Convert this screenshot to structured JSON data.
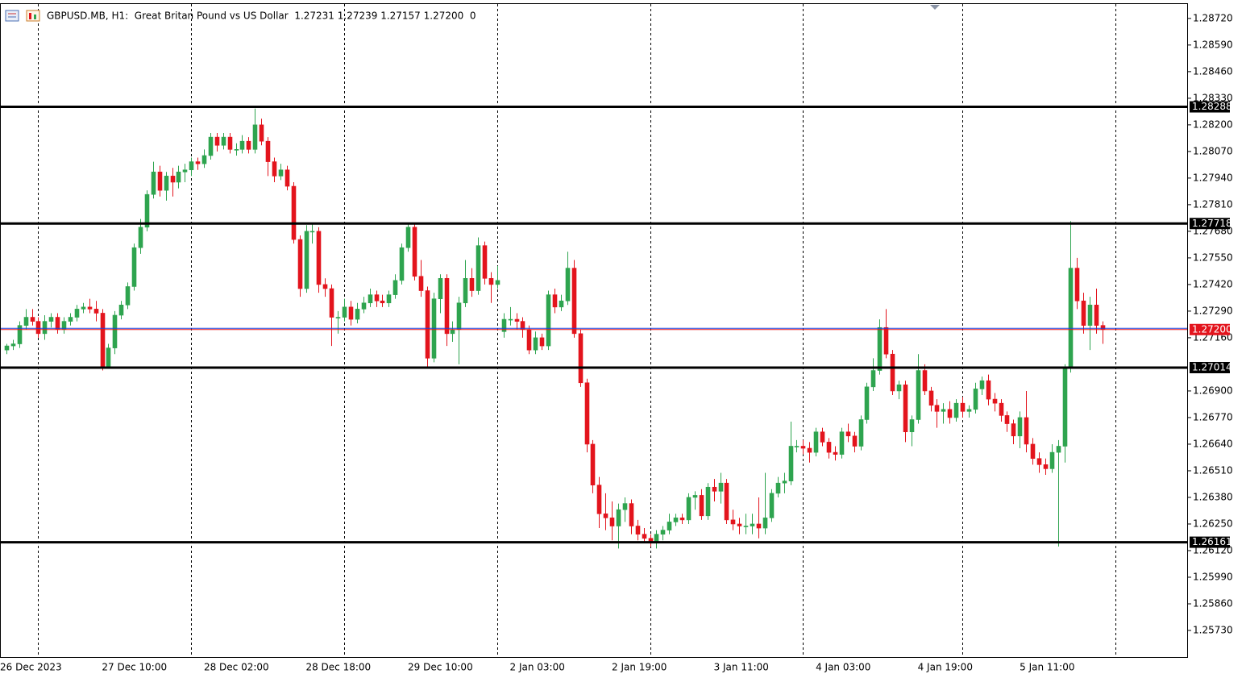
{
  "chart_data": {
    "type": "candlestick",
    "title": "GBPUSD.MB, H1:  Great Britan Pound vs US Dollar  1.27231 1.27239 1.27157 1.27200  0",
    "up_color": "#2ea44f",
    "down_color": "#e3141d",
    "ylim": [
      1.256,
      1.2881
    ],
    "xlim": [
      -1,
      185.4
    ],
    "yticks": [
      {
        "value": 1.2872,
        "label": "1.28720"
      },
      {
        "value": 1.2859,
        "label": "1.28590"
      },
      {
        "value": 1.2846,
        "label": "1.28460"
      },
      {
        "value": 1.2833,
        "label": "1.28330"
      },
      {
        "value": 1.282,
        "label": "1.28200"
      },
      {
        "value": 1.2807,
        "label": "1.28070"
      },
      {
        "value": 1.2794,
        "label": "1.27940"
      },
      {
        "value": 1.2781,
        "label": "1.27810"
      },
      {
        "value": 1.2768,
        "label": "1.27680"
      },
      {
        "value": 1.2755,
        "label": "1.27550"
      },
      {
        "value": 1.2742,
        "label": "1.27420"
      },
      {
        "value": 1.2729,
        "label": "1.27290"
      },
      {
        "value": 1.2716,
        "label": "1.27160"
      },
      {
        "value": 1.269,
        "label": "1.26900"
      },
      {
        "value": 1.2677,
        "label": "1.26770"
      },
      {
        "value": 1.2664,
        "label": "1.26640"
      },
      {
        "value": 1.2651,
        "label": "1.26510"
      },
      {
        "value": 1.2638,
        "label": "1.26380"
      },
      {
        "value": 1.2625,
        "label": "1.26250"
      },
      {
        "value": 1.2612,
        "label": "1.26120"
      },
      {
        "value": 1.2599,
        "label": "1.25990"
      },
      {
        "value": 1.2586,
        "label": "1.25860"
      },
      {
        "value": 1.2573,
        "label": "1.25730"
      }
    ],
    "xticks": [
      {
        "value": 0,
        "label": "26 Dec 2023"
      },
      {
        "value": 16,
        "label": "27 Dec 10:00"
      },
      {
        "value": 32,
        "label": "28 Dec 02:00"
      },
      {
        "value": 48,
        "label": "28 Dec 18:00"
      },
      {
        "value": 64,
        "label": "29 Dec 10:00"
      },
      {
        "value": 80,
        "label": "2 Jan 03:00"
      },
      {
        "value": 96,
        "label": "2 Jan 19:00"
      },
      {
        "value": 112,
        "label": "3 Jan 11:00"
      },
      {
        "value": 128,
        "label": "4 Jan 03:00"
      },
      {
        "value": 144,
        "label": "4 Jan 19:00"
      },
      {
        "value": 160,
        "label": "5 Jan 11:00"
      }
    ],
    "xgrid": [
      5,
      29,
      53,
      77,
      101,
      125,
      150,
      174
    ],
    "levels": [
      {
        "value": 1.28288,
        "label": "1.28288"
      },
      {
        "value": 1.27718,
        "label": "1.27718"
      },
      {
        "value": 1.27014,
        "label": "1.27014"
      },
      {
        "value": 1.26161,
        "label": "1.26161"
      }
    ],
    "bid": {
      "value": 1.272,
      "label": "1.27200",
      "color": "#e3141d"
    },
    "ask": {
      "value": 1.27206,
      "color": "#1f3fd6"
    },
    "ohlc": [
      [
        1.271,
        1.2713,
        1.2708,
        1.2712
      ],
      [
        1.2712,
        1.2715,
        1.271,
        1.2713
      ],
      [
        1.2713,
        1.2724,
        1.2711,
        1.2722
      ],
      [
        1.2722,
        1.273,
        1.272,
        1.2726
      ],
      [
        1.2726,
        1.273,
        1.2722,
        1.2724
      ],
      [
        1.2724,
        1.2726,
        1.2716,
        1.2718
      ],
      [
        1.2718,
        1.2727,
        1.2715,
        1.2724
      ],
      [
        1.2724,
        1.2728,
        1.2721,
        1.2726
      ],
      [
        1.2726,
        1.2728,
        1.2718,
        1.272
      ],
      [
        1.272,
        1.2726,
        1.2718,
        1.2724
      ],
      [
        1.2724,
        1.2728,
        1.2722,
        1.2726
      ],
      [
        1.2726,
        1.2732,
        1.2724,
        1.273
      ],
      [
        1.273,
        1.2733,
        1.2728,
        1.2731
      ],
      [
        1.2731,
        1.2735,
        1.2728,
        1.273
      ],
      [
        1.273,
        1.2734,
        1.2724,
        1.2728
      ],
      [
        1.2728,
        1.273,
        1.27,
        1.2702
      ],
      [
        1.2702,
        1.2713,
        1.2701,
        1.2711
      ],
      [
        1.2711,
        1.2729,
        1.2708,
        1.2727
      ],
      [
        1.2727,
        1.2734,
        1.2725,
        1.2732
      ],
      [
        1.2732,
        1.2743,
        1.273,
        1.2741
      ],
      [
        1.2741,
        1.2762,
        1.2739,
        1.276
      ],
      [
        1.276,
        1.2774,
        1.2757,
        1.277
      ],
      [
        1.277,
        1.2788,
        1.2768,
        1.2786
      ],
      [
        1.2786,
        1.2802,
        1.2784,
        1.2797
      ],
      [
        1.2797,
        1.28,
        1.2785,
        1.2788
      ],
      [
        1.2788,
        1.2797,
        1.2783,
        1.2795
      ],
      [
        1.2795,
        1.2799,
        1.2785,
        1.2792
      ],
      [
        1.2792,
        1.28,
        1.2789,
        1.2797
      ],
      [
        1.2797,
        1.2801,
        1.2792,
        1.2798
      ],
      [
        1.2798,
        1.2804,
        1.2795,
        1.2802
      ],
      [
        1.2802,
        1.2804,
        1.2798,
        1.2801
      ],
      [
        1.2801,
        1.2808,
        1.2799,
        1.2805
      ],
      [
        1.2805,
        1.2816,
        1.2803,
        1.2814
      ],
      [
        1.2814,
        1.2816,
        1.2807,
        1.281
      ],
      [
        1.281,
        1.2816,
        1.2808,
        1.2814
      ],
      [
        1.2814,
        1.2816,
        1.2806,
        1.2808
      ],
      [
        1.2808,
        1.2811,
        1.2805,
        1.2808
      ],
      [
        1.2808,
        1.2815,
        1.2806,
        1.2812
      ],
      [
        1.2812,
        1.2814,
        1.2806,
        1.2808
      ],
      [
        1.2808,
        1.2828,
        1.2806,
        1.282
      ],
      [
        1.282,
        1.2823,
        1.281,
        1.2812
      ],
      [
        1.2812,
        1.2814,
        1.2795,
        1.2802
      ],
      [
        1.2802,
        1.2804,
        1.2792,
        1.2795
      ],
      [
        1.2795,
        1.2801,
        1.2793,
        1.2798
      ],
      [
        1.2798,
        1.28,
        1.2788,
        1.279
      ],
      [
        1.279,
        1.2792,
        1.2762,
        1.2764
      ],
      [
        1.2764,
        1.2766,
        1.2736,
        1.274
      ],
      [
        1.274,
        1.2771,
        1.2738,
        1.2768
      ],
      [
        1.2768,
        1.2772,
        1.2762,
        1.2768
      ],
      [
        1.2768,
        1.277,
        1.2738,
        1.2742
      ],
      [
        1.2742,
        1.2745,
        1.2736,
        1.274
      ],
      [
        1.274,
        1.2742,
        1.2712,
        1.2726
      ],
      [
        1.2726,
        1.2729,
        1.2718,
        1.2726
      ],
      [
        1.2726,
        1.2735,
        1.2724,
        1.2731
      ],
      [
        1.2731,
        1.2734,
        1.2722,
        1.2725
      ],
      [
        1.2725,
        1.2733,
        1.2723,
        1.273
      ],
      [
        1.273,
        1.2736,
        1.2728,
        1.2733
      ],
      [
        1.2733,
        1.274,
        1.2731,
        1.2737
      ],
      [
        1.2737,
        1.2739,
        1.2731,
        1.2734
      ],
      [
        1.2734,
        1.2737,
        1.2731,
        1.2733
      ],
      [
        1.2733,
        1.2739,
        1.2731,
        1.2737
      ],
      [
        1.2737,
        1.2747,
        1.2735,
        1.2744
      ],
      [
        1.2744,
        1.2762,
        1.2742,
        1.276
      ],
      [
        1.276,
        1.2772,
        1.2758,
        1.277
      ],
      [
        1.277,
        1.2772,
        1.2744,
        1.2746
      ],
      [
        1.2746,
        1.2754,
        1.2736,
        1.2739
      ],
      [
        1.2739,
        1.2741,
        1.2702,
        1.2706
      ],
      [
        1.2706,
        1.2738,
        1.2704,
        1.2735
      ],
      [
        1.2735,
        1.2747,
        1.2728,
        1.2745
      ],
      [
        1.2745,
        1.2747,
        1.2712,
        1.2718
      ],
      [
        1.2718,
        1.2724,
        1.2714,
        1.272
      ],
      [
        1.272,
        1.2736,
        1.2703,
        1.2733
      ],
      [
        1.2733,
        1.2754,
        1.2731,
        1.2745
      ],
      [
        1.2745,
        1.275,
        1.2736,
        1.2739
      ],
      [
        1.2739,
        1.2765,
        1.2737,
        1.2761
      ],
      [
        1.2761,
        1.2763,
        1.2742,
        1.2745
      ],
      [
        1.2745,
        1.2748,
        1.2733,
        1.2742
      ],
      [
        1.2742,
        1.2751,
        1.274,
        1.2744
      ],
      [
        1.2719,
        1.2728,
        1.2716,
        1.2725
      ],
      [
        1.2725,
        1.2731,
        1.2722,
        1.2725
      ],
      [
        1.2725,
        1.2728,
        1.272,
        1.2724
      ],
      [
        1.2724,
        1.2726,
        1.2716,
        1.272
      ],
      [
        1.272,
        1.2722,
        1.2708,
        1.271
      ],
      [
        1.271,
        1.2719,
        1.2708,
        1.2716
      ],
      [
        1.2716,
        1.2718,
        1.271,
        1.2712
      ],
      [
        1.2712,
        1.2739,
        1.271,
        1.2737
      ],
      [
        1.2737,
        1.274,
        1.2728,
        1.2731
      ],
      [
        1.2731,
        1.2737,
        1.2729,
        1.2734
      ],
      [
        1.2734,
        1.2758,
        1.2732,
        1.275
      ],
      [
        1.275,
        1.2754,
        1.2716,
        1.2718
      ],
      [
        1.2718,
        1.272,
        1.2692,
        1.2694
      ],
      [
        1.2694,
        1.2696,
        1.266,
        1.2664
      ],
      [
        1.2664,
        1.2666,
        1.264,
        1.2644
      ],
      [
        1.2644,
        1.2648,
        1.2623,
        1.263
      ],
      [
        1.263,
        1.264,
        1.2622,
        1.2628
      ],
      [
        1.2628,
        1.2636,
        1.2617,
        1.2624
      ],
      [
        1.2624,
        1.2635,
        1.2613,
        1.2632
      ],
      [
        1.2632,
        1.2638,
        1.2626,
        1.2635
      ],
      [
        1.2635,
        1.2637,
        1.262,
        1.2624
      ],
      [
        1.2624,
        1.2627,
        1.2617,
        1.262
      ],
      [
        1.262,
        1.2623,
        1.2616,
        1.2618
      ],
      [
        1.2618,
        1.262,
        1.2614,
        1.2616
      ],
      [
        1.2616,
        1.2622,
        1.2613,
        1.262
      ],
      [
        1.262,
        1.2624,
        1.2617,
        1.2622
      ],
      [
        1.2622,
        1.263,
        1.262,
        1.2626
      ],
      [
        1.2626,
        1.263,
        1.2624,
        1.2628
      ],
      [
        1.2628,
        1.263,
        1.2625,
        1.2627
      ],
      [
        1.2627,
        1.264,
        1.2625,
        1.2638
      ],
      [
        1.2638,
        1.2641,
        1.2632,
        1.2639
      ],
      [
        1.2639,
        1.2642,
        1.2627,
        1.2629
      ],
      [
        1.2629,
        1.2645,
        1.2627,
        1.2643
      ],
      [
        1.2643,
        1.2647,
        1.2636,
        1.2641
      ],
      [
        1.2641,
        1.265,
        1.2635,
        1.2645
      ],
      [
        1.2645,
        1.2647,
        1.2625,
        1.2627
      ],
      [
        1.2627,
        1.2632,
        1.2622,
        1.2625
      ],
      [
        1.2625,
        1.2628,
        1.262,
        1.2624
      ],
      [
        1.2624,
        1.263,
        1.262,
        1.2624
      ],
      [
        1.2624,
        1.263,
        1.262,
        1.2625
      ],
      [
        1.2625,
        1.2638,
        1.2618,
        1.2623
      ],
      [
        1.2623,
        1.265,
        1.262,
        1.2628
      ],
      [
        1.2628,
        1.2642,
        1.2626,
        1.264
      ],
      [
        1.264,
        1.2648,
        1.2638,
        1.2645
      ],
      [
        1.2645,
        1.265,
        1.264,
        1.2646
      ],
      [
        1.2646,
        1.2675,
        1.2644,
        1.2663
      ],
      [
        1.2663,
        1.2666,
        1.266,
        1.2663
      ],
      [
        1.2663,
        1.2666,
        1.2659,
        1.2662
      ],
      [
        1.2662,
        1.2665,
        1.2655,
        1.266
      ],
      [
        1.266,
        1.2672,
        1.2658,
        1.267
      ],
      [
        1.267,
        1.2672,
        1.2663,
        1.2665
      ],
      [
        1.2665,
        1.2667,
        1.2657,
        1.266
      ],
      [
        1.266,
        1.2663,
        1.2656,
        1.2659
      ],
      [
        1.2659,
        1.2672,
        1.2657,
        1.267
      ],
      [
        1.267,
        1.2674,
        1.2665,
        1.2668
      ],
      [
        1.2668,
        1.267,
        1.266,
        1.2663
      ],
      [
        1.2663,
        1.2678,
        1.2661,
        1.2676
      ],
      [
        1.2676,
        1.2694,
        1.2674,
        1.2692
      ],
      [
        1.2692,
        1.2706,
        1.269,
        1.27
      ],
      [
        1.27,
        1.2725,
        1.2698,
        1.2721
      ],
      [
        1.2721,
        1.273,
        1.2706,
        1.2708
      ],
      [
        1.2708,
        1.271,
        1.2688,
        1.269
      ],
      [
        1.269,
        1.2695,
        1.2686,
        1.2693
      ],
      [
        1.2693,
        1.2695,
        1.2665,
        1.267
      ],
      [
        1.267,
        1.2678,
        1.2663,
        1.2676
      ],
      [
        1.2676,
        1.2708,
        1.2674,
        1.27
      ],
      [
        1.27,
        1.2703,
        1.2688,
        1.269
      ],
      [
        1.269,
        1.2692,
        1.268,
        1.2683
      ],
      [
        1.2683,
        1.2686,
        1.2672,
        1.268
      ],
      [
        1.268,
        1.2684,
        1.2674,
        1.2681
      ],
      [
        1.2681,
        1.2685,
        1.2674,
        1.2677
      ],
      [
        1.2677,
        1.2686,
        1.2675,
        1.2684
      ],
      [
        1.2684,
        1.2687,
        1.2677,
        1.268
      ],
      [
        1.268,
        1.2683,
        1.2677,
        1.2681
      ],
      [
        1.2681,
        1.2694,
        1.2679,
        1.2691
      ],
      [
        1.2691,
        1.2697,
        1.2688,
        1.2695
      ],
      [
        1.2695,
        1.2698,
        1.2683,
        1.2686
      ],
      [
        1.2686,
        1.2689,
        1.268,
        1.2684
      ],
      [
        1.2684,
        1.2686,
        1.2675,
        1.2678
      ],
      [
        1.2678,
        1.268,
        1.267,
        1.2674
      ],
      [
        1.2674,
        1.2676,
        1.2664,
        1.2668
      ],
      [
        1.2668,
        1.268,
        1.2662,
        1.2677
      ],
      [
        1.2677,
        1.269,
        1.266,
        1.2664
      ],
      [
        1.2664,
        1.2667,
        1.2654,
        1.2657
      ],
      [
        1.2657,
        1.266,
        1.265,
        1.2654
      ],
      [
        1.2654,
        1.2657,
        1.2649,
        1.2652
      ],
      [
        1.2652,
        1.2664,
        1.265,
        1.266
      ],
      [
        1.266,
        1.2666,
        1.2614,
        1.2663
      ],
      [
        1.2663,
        1.2703,
        1.2655,
        1.2701
      ],
      [
        1.2701,
        1.2773,
        1.2699,
        1.275
      ],
      [
        1.275,
        1.2755,
        1.273,
        1.2734
      ],
      [
        1.2734,
        1.2738,
        1.2718,
        1.2722
      ],
      [
        1.2722,
        1.2736,
        1.271,
        1.2732
      ],
      [
        1.2732,
        1.274,
        1.2718,
        1.2722
      ],
      [
        1.2722,
        1.2724,
        1.2713,
        1.272
      ]
    ]
  }
}
